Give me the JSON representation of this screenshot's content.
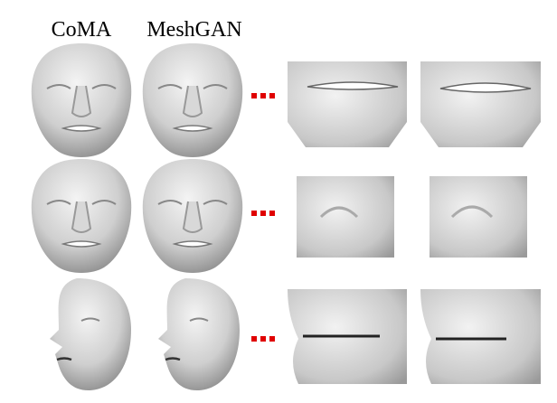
{
  "header": {
    "labels": [
      "CoMA",
      "MeshGAN"
    ]
  }
}
